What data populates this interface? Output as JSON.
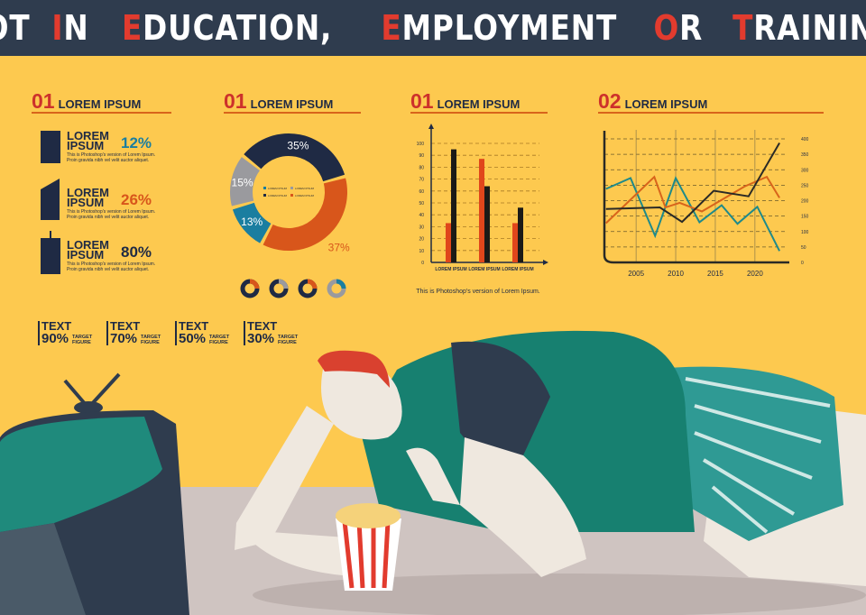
{
  "title": {
    "words": [
      {
        "first": "N",
        "rest": "OT"
      },
      {
        "first": "I",
        "rest": "N"
      },
      {
        "first": "E",
        "rest": "DUCATION,"
      },
      {
        "first": "E",
        "rest": "MPLOYMENT"
      },
      {
        "first": "O",
        "rest": "R"
      },
      {
        "first": "T",
        "rest": "RAINING"
      }
    ]
  },
  "colors": {
    "background": "#fdc94f",
    "title_bar": "#2f3c4e",
    "accent_red": "#e23b2e",
    "navy": "#1f2a44",
    "orange": "#d8561b",
    "teal": "#1a7ea0",
    "gray": "#9a9a9e",
    "green": "#1a7f6c"
  },
  "sections": [
    {
      "num": "01",
      "label": "LOREM IPSUM"
    },
    {
      "num": "01",
      "label": "LOREM IPSUM"
    },
    {
      "num": "01",
      "label": "LOREM IPSUM"
    },
    {
      "num": "02",
      "label": "LOREM IPSUM"
    }
  ],
  "buildings": [
    {
      "icon": "office-building-icon",
      "name": "LOREM IPSUM",
      "percent": "12%",
      "color": "#1a7ea0",
      "desc": "This is Photoshop's version of Lorem Ipsum. Proin gravida nibh vel velit auctor aliquet."
    },
    {
      "icon": "skyscraper-icon",
      "name": "LOREM IPSUM",
      "percent": "26%",
      "color": "#d8561b",
      "desc": "This is Photoshop's version of Lorem Ipsum. Proin gravida nibh vel velit auctor aliquet."
    },
    {
      "icon": "tower-building-icon",
      "name": "LOREM IPSUM",
      "percent": "80%",
      "color": "#1f2a44",
      "desc": "This is Photoshop's version of Lorem Ipsum. Proin gravida nibh vel velit auctor aliquet."
    }
  ],
  "stats": [
    {
      "text": "TEXT",
      "percent": "90%",
      "label": "TARGET FIGURE"
    },
    {
      "text": "TEXT",
      "percent": "70%",
      "label": "TARGET FIGURE"
    },
    {
      "text": "TEXT",
      "percent": "50%",
      "label": "TARGET FIGURE"
    },
    {
      "text": "TEXT",
      "percent": "30%",
      "label": "TARGET FIGURE"
    }
  ],
  "chart_data": [
    {
      "type": "pie",
      "donut": true,
      "slices": [
        {
          "label": "35%",
          "value": 35,
          "color": "#1f2a44"
        },
        {
          "label": "37%",
          "value": 37,
          "color": "#d8561b"
        },
        {
          "label": "13%",
          "value": 13,
          "color": "#1a7ea0"
        },
        {
          "label": "15%",
          "value": 15,
          "color": "#9a9a9e"
        }
      ],
      "legend": [
        "LOREM IPSUM",
        "LOREM IPSUM",
        "LOREM IPSUM",
        "LOREM IPSUM"
      ],
      "legend_placement": "center"
    },
    {
      "type": "bar",
      "categories": [
        "LOREM IPSUM",
        "LOREM IPSUM",
        "LOREM IPSUM"
      ],
      "series": [
        {
          "values": [
            33,
            87,
            33
          ],
          "color": "#e0461b"
        },
        {
          "values": [
            95,
            64,
            46
          ],
          "color": "#1b1a17"
        }
      ],
      "ylim": [
        0,
        100
      ],
      "yticks": [
        0,
        10,
        20,
        30,
        40,
        50,
        60,
        70,
        80,
        90,
        100
      ],
      "grid": true,
      "caption": "This is Photoshop's version  of Lorem Ipsum."
    },
    {
      "type": "line",
      "xlim": [
        2001,
        2024
      ],
      "ylim": [
        0,
        400
      ],
      "xticks": [
        2005,
        2010,
        2015,
        2020
      ],
      "yticks": [
        0,
        50,
        100,
        150,
        200,
        250,
        300,
        350,
        400
      ],
      "grid": true,
      "series": [
        {
          "color": "#1f8a8a",
          "x": [
            2001.2,
            2004.3,
            2007.4,
            2010,
            2013,
            2015.8,
            2017.8,
            2020.3,
            2023.1
          ],
          "y": [
            238,
            273,
            86,
            273,
            130,
            185,
            125,
            180,
            37
          ]
        },
        {
          "color": "#d8641b",
          "x": [
            2001.2,
            2007.3,
            2008.7,
            2010.5,
            2013.3,
            2018.7,
            2021.5,
            2023.1
          ],
          "y": [
            127,
            277,
            178,
            193,
            165,
            246,
            277,
            209
          ]
        },
        {
          "color": "#2a2a26",
          "x": [
            2001.2,
            2008,
            2010.8,
            2014.8,
            2019.2,
            2023.1
          ],
          "y": [
            173,
            178,
            131,
            232,
            214,
            387
          ]
        }
      ]
    }
  ]
}
